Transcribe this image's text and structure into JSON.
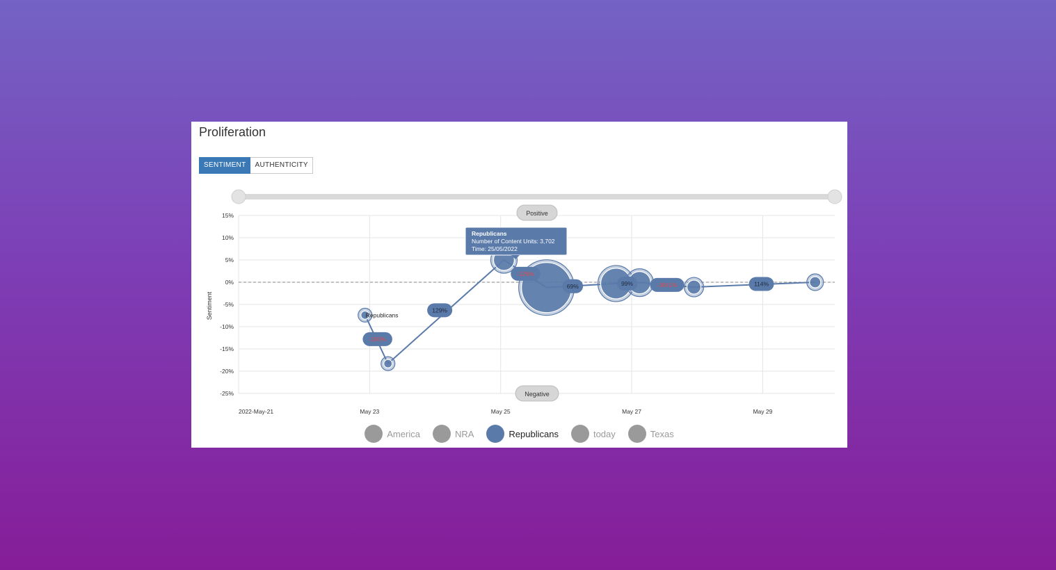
{
  "panel": {
    "title": "Proliferation"
  },
  "tabs": [
    {
      "label": "SENTIMENT",
      "active": true
    },
    {
      "label": "AUTHENTICITY",
      "active": false
    }
  ],
  "colors": {
    "series": "#5a7aaa",
    "negative_label": "#e04a4a",
    "inactive": "#9a9a9a",
    "tab_active": "#3a79b6"
  },
  "range_pills": {
    "top": "Positive",
    "bottom": "Negative"
  },
  "tooltip": {
    "title": "Republicans",
    "line1": "Number of Content Units: 3,702",
    "line2": "Time: 25/05/2022"
  },
  "legend": [
    {
      "label": "America",
      "active": false
    },
    {
      "label": "NRA",
      "active": false
    },
    {
      "label": "Republicans",
      "active": true
    },
    {
      "label": "today",
      "active": false
    },
    {
      "label": "Texas",
      "active": false
    }
  ],
  "chart_data": {
    "type": "scatter",
    "ylabel": "Sentiment",
    "xlabel": "",
    "ylim": [
      -25,
      15
    ],
    "yticks": [
      "15%",
      "10%",
      "5%",
      "0%",
      "-5%",
      "-10%",
      "-15%",
      "-20%",
      "-25%"
    ],
    "ytick_values": [
      15,
      10,
      5,
      0,
      -5,
      -10,
      -15,
      -20,
      -25
    ],
    "xlim": [
      0,
      9.1
    ],
    "xticks": [
      {
        "label": "2022-May-21",
        "x": 0
      },
      {
        "label": "May 23",
        "x": 2
      },
      {
        "label": "May 25",
        "x": 4
      },
      {
        "label": "May 27",
        "x": 6
      },
      {
        "label": "May 29",
        "x": 8
      }
    ],
    "series": [
      {
        "name": "Republicans",
        "series_label": "Republicans",
        "points": [
          {
            "x": 1.93,
            "y": -7.4,
            "r": 6
          },
          {
            "x": 2.28,
            "y": -18.3,
            "r": 6
          },
          {
            "x": 4.05,
            "y": 5.0,
            "r": 15
          },
          {
            "x": 4.7,
            "y": -1.2,
            "r": 36
          },
          {
            "x": 5.76,
            "y": -0.3,
            "r": 22
          },
          {
            "x": 6.12,
            "y": -0.1,
            "r": 16
          },
          {
            "x": 6.95,
            "y": -1.1,
            "r": 10
          },
          {
            "x": 8.8,
            "y": 0.0,
            "r": 8
          }
        ],
        "change_labels": [
          {
            "text": "-150%",
            "x": 2.12,
            "y": -12.8,
            "negative": true
          },
          {
            "text": "129%",
            "x": 3.07,
            "y": -6.3,
            "negative": false
          },
          {
            "text": "-126%",
            "x": 4.38,
            "y": 1.9,
            "negative": true
          },
          {
            "text": "69%",
            "x": 5.1,
            "y": -0.9,
            "negative": false
          },
          {
            "text": "99%",
            "x": 5.93,
            "y": -0.3,
            "negative": false
          },
          {
            "text": "-3041%",
            "x": 6.54,
            "y": -0.6,
            "negative": true
          },
          {
            "text": "114%",
            "x": 7.98,
            "y": -0.4,
            "negative": false
          }
        ]
      }
    ]
  }
}
